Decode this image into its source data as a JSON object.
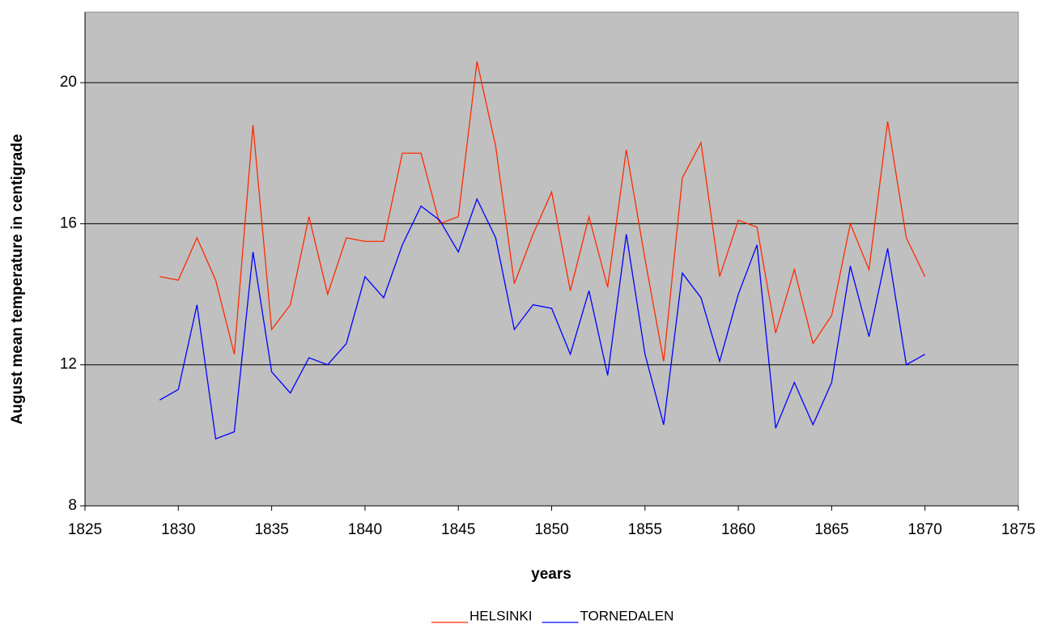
{
  "chart_data": {
    "type": "line",
    "x_label": "years",
    "y_label": "August mean temperature in centigrade",
    "x": [
      1829,
      1830,
      1831,
      1832,
      1833,
      1834,
      1835,
      1836,
      1837,
      1838,
      1839,
      1840,
      1841,
      1842,
      1843,
      1844,
      1845,
      1846,
      1847,
      1848,
      1849,
      1850,
      1851,
      1852,
      1853,
      1854,
      1855,
      1856,
      1857,
      1858,
      1859,
      1860,
      1861,
      1862,
      1863,
      1864,
      1865,
      1866,
      1867,
      1868,
      1869,
      1870
    ],
    "series": [
      {
        "name": "HELSINKI",
        "color": "#ff2a00",
        "values": [
          14.5,
          14.4,
          15.6,
          14.4,
          12.3,
          18.8,
          13.0,
          13.7,
          16.2,
          14.0,
          15.6,
          15.5,
          15.5,
          18.0,
          18.0,
          16.0,
          16.2,
          20.6,
          18.2,
          14.3,
          15.7,
          16.9,
          14.1,
          16.2,
          14.2,
          18.1,
          15.0,
          12.1,
          17.3,
          18.3,
          14.5,
          16.1,
          15.9,
          12.9,
          14.7,
          12.6,
          13.4,
          16.0,
          14.7,
          18.9,
          15.6,
          14.5
        ]
      },
      {
        "name": "TORNEDALEN",
        "color": "#0000ff",
        "values": [
          11.0,
          11.3,
          13.7,
          9.9,
          10.1,
          15.2,
          11.8,
          11.2,
          12.2,
          12.0,
          12.6,
          14.5,
          13.9,
          15.4,
          16.5,
          16.1,
          15.2,
          16.7,
          15.6,
          13.0,
          13.7,
          13.6,
          12.3,
          14.1,
          11.7,
          15.7,
          12.3,
          10.3,
          14.6,
          13.9,
          12.1,
          14.0,
          15.4,
          10.2,
          11.5,
          10.3,
          11.5,
          14.8,
          12.8,
          15.3,
          12.0,
          12.3
        ]
      }
    ],
    "xlim": [
      1825,
      1875
    ],
    "xticks": [
      1825,
      1830,
      1835,
      1840,
      1845,
      1850,
      1855,
      1860,
      1865,
      1870,
      1875
    ],
    "ylim": [
      8,
      22
    ],
    "yticks": [
      8,
      12,
      16,
      20
    ],
    "grid": true,
    "plot_background": "#c0c0c0",
    "legend": "bottom"
  }
}
